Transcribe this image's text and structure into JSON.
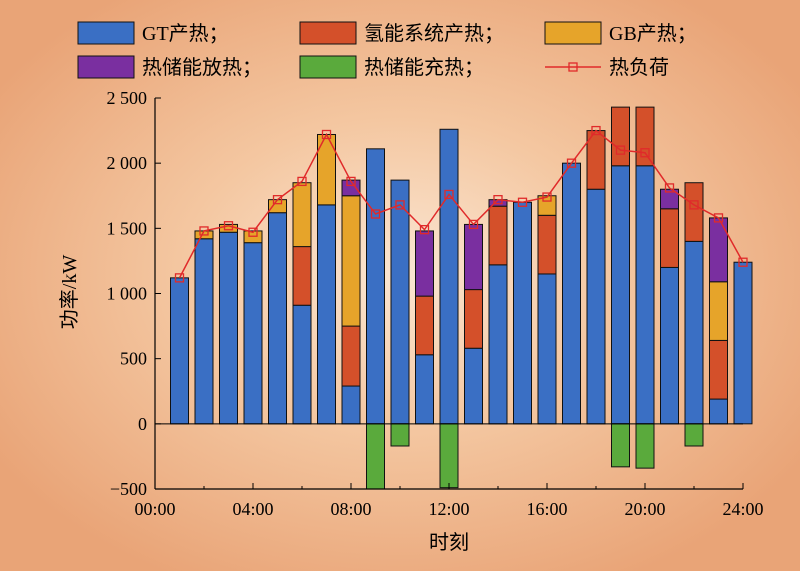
{
  "chart_data": {
    "type": "bar",
    "stacked": true,
    "xlabel": "时刻",
    "ylabel": "功率/kW",
    "ylim": [
      -500,
      2500
    ],
    "yticks": [
      -500,
      0,
      500,
      1000,
      1500,
      2000,
      2500
    ],
    "ytick_labels": [
      "−500",
      "0",
      "500",
      "1 000",
      "1 500",
      "2 000",
      "2 500"
    ],
    "xlim": [
      0,
      24
    ],
    "xticks": [
      0,
      4,
      8,
      12,
      16,
      20,
      24
    ],
    "xtick_labels": [
      "00:00",
      "04:00",
      "08:00",
      "12:00",
      "16:00",
      "20:00",
      "24:00"
    ],
    "categories": [
      1,
      2,
      3,
      4,
      5,
      6,
      7,
      8,
      9,
      10,
      11,
      12,
      13,
      14,
      15,
      16,
      17,
      18,
      19,
      20,
      21,
      22,
      23,
      24
    ],
    "series": [
      {
        "name": "GT产热",
        "color": "#3a6fc4",
        "values": [
          1120,
          1420,
          1470,
          1390,
          1620,
          910,
          1680,
          290,
          2110,
          1870,
          530,
          2260,
          580,
          1220,
          1700,
          1150,
          2000,
          1800,
          1980,
          1980,
          1200,
          1400,
          190,
          1240
        ]
      },
      {
        "name": "氢能系统产热",
        "color": "#d4502a",
        "values": [
          0,
          0,
          0,
          0,
          0,
          450,
          0,
          460,
          0,
          0,
          450,
          0,
          450,
          450,
          0,
          450,
          0,
          450,
          450,
          450,
          450,
          450,
          450,
          0
        ]
      },
      {
        "name": "GB产热",
        "color": "#e6a42a",
        "values": [
          0,
          60,
          60,
          90,
          100,
          490,
          540,
          1000,
          0,
          0,
          0,
          0,
          0,
          0,
          0,
          150,
          0,
          0,
          0,
          0,
          0,
          0,
          450,
          0
        ]
      },
      {
        "name": "热储能放热",
        "color": "#7a2fa0",
        "values": [
          0,
          0,
          0,
          0,
          0,
          0,
          0,
          120,
          0,
          0,
          500,
          0,
          500,
          50,
          0,
          0,
          0,
          0,
          0,
          0,
          150,
          0,
          490,
          0
        ]
      },
      {
        "name": "热储能充热",
        "color": "#5aaa3c",
        "values": [
          0,
          0,
          0,
          0,
          0,
          0,
          0,
          0,
          -500,
          -170,
          0,
          -490,
          0,
          0,
          0,
          0,
          0,
          0,
          -330,
          -340,
          0,
          -170,
          0,
          0
        ]
      }
    ],
    "line": {
      "name": "热负荷",
      "color": "#e02a2a",
      "values": [
        1120,
        1480,
        1520,
        1470,
        1720,
        1860,
        2220,
        1860,
        1610,
        1680,
        1490,
        1760,
        1530,
        1720,
        1700,
        1740,
        2000,
        2250,
        2100,
        2080,
        1810,
        1680,
        1580,
        1240
      ]
    },
    "legend": [
      "GT产热；",
      "氢能系统产热；",
      "GB产热；",
      "热储能放热；",
      "热储能充热；",
      "热负荷"
    ],
    "legend_position": "top"
  }
}
